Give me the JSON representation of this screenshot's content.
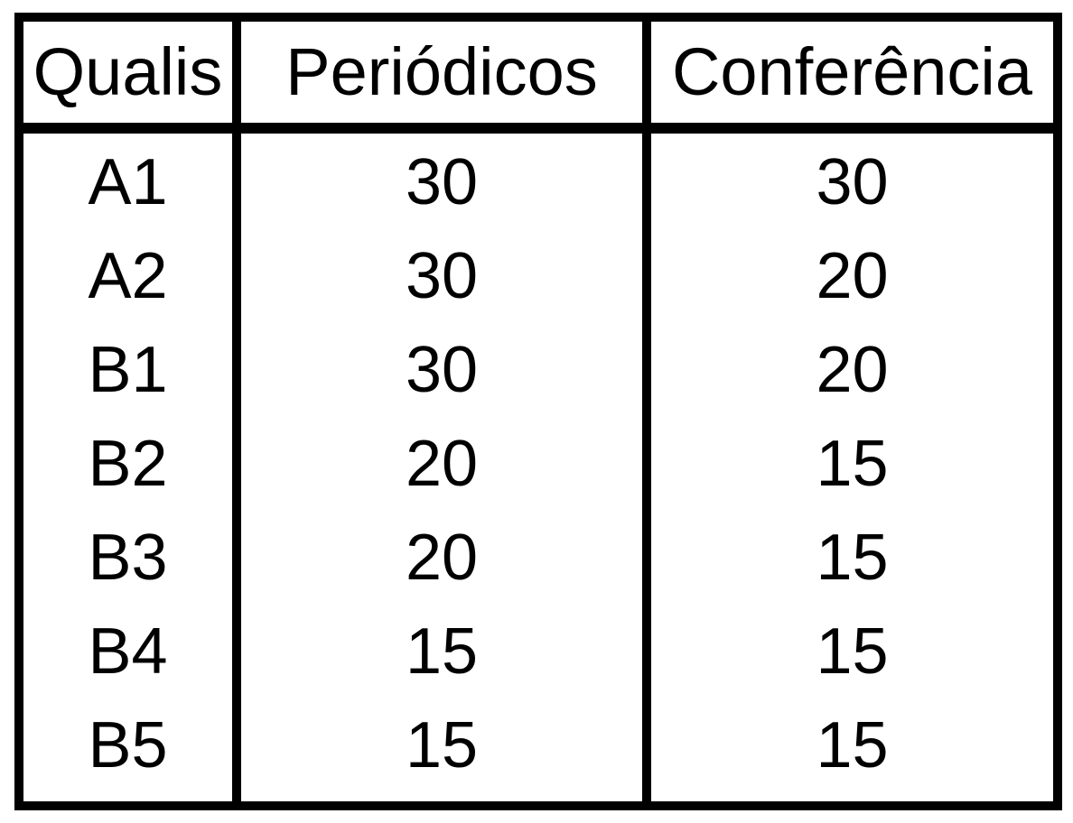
{
  "table": {
    "headers": [
      "Qualis",
      "Periódicos",
      "Conferência"
    ],
    "rows": [
      [
        "A1",
        "30",
        "30"
      ],
      [
        "A2",
        "30",
        "20"
      ],
      [
        "B1",
        "30",
        "20"
      ],
      [
        "B2",
        "20",
        "15"
      ],
      [
        "B3",
        "20",
        "15"
      ],
      [
        "B4",
        "15",
        "15"
      ],
      [
        "B5",
        "15",
        "15"
      ]
    ]
  }
}
